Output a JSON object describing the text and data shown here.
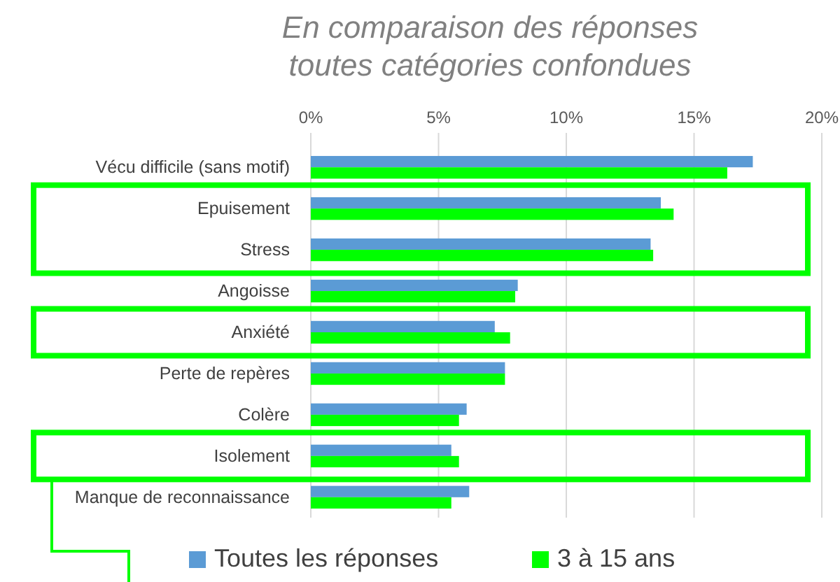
{
  "chart_data": {
    "type": "bar",
    "orientation": "horizontal",
    "title": "En comparaison des réponses\ntoutes catégories confondues",
    "categories": [
      "Vécu difficile (sans motif)",
      "Epuisement",
      "Stress",
      "Angoisse",
      "Anxiété",
      "Perte de repères",
      "Colère",
      "Isolement",
      "Manque de reconnaissance"
    ],
    "series": [
      {
        "name": "Toutes les réponses",
        "color": "#5b9bd5",
        "values": [
          17.3,
          13.7,
          13.3,
          8.1,
          7.2,
          7.6,
          6.1,
          5.5,
          6.2
        ]
      },
      {
        "name": "3 à 15 ans",
        "color": "#00ff00",
        "values": [
          16.3,
          14.2,
          13.4,
          8.0,
          7.8,
          7.6,
          5.8,
          5.8,
          5.5
        ]
      }
    ],
    "xlim": [
      0,
      20
    ],
    "xticks": [
      {
        "value": 0,
        "label": "0%"
      },
      {
        "value": 5,
        "label": "5%"
      },
      {
        "value": 10,
        "label": "10%"
      },
      {
        "value": 15,
        "label": "15%"
      },
      {
        "value": 20,
        "label": "20%"
      }
    ],
    "grid": "x",
    "legend": "bottom"
  }
}
